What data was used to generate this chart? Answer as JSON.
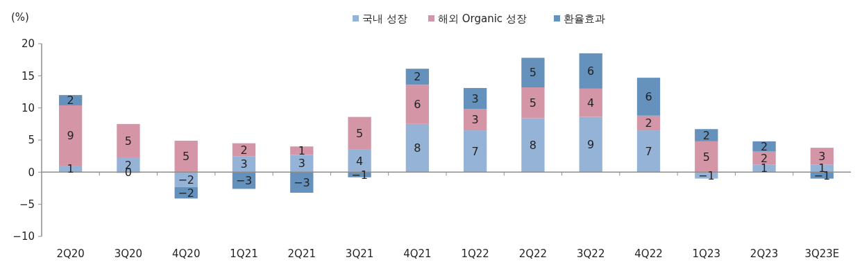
{
  "chart_data": {
    "type": "bar",
    "stacked": true,
    "ylabel": "(%)",
    "categories": [
      "2Q20",
      "3Q20",
      "4Q20",
      "1Q21",
      "2Q21",
      "3Q21",
      "4Q21",
      "1Q22",
      "2Q22",
      "3Q22",
      "4Q22",
      "1Q23",
      "2Q23",
      "3Q23E"
    ],
    "series": [
      {
        "name": "국내 성장",
        "color": "#95b3d7",
        "values": [
          1.0,
          2.2,
          -2.3,
          2.5,
          2.7,
          3.5,
          7.5,
          6.5,
          8.4,
          8.6,
          6.5,
          -1.0,
          1.2,
          1.2
        ],
        "value_labels": [
          "1",
          "2",
          "−2",
          "3",
          "3",
          "4",
          "8",
          "7",
          "8",
          "9",
          "7",
          "−1",
          "1",
          "1"
        ]
      },
      {
        "name": "해외 Organic 성장",
        "color": "#d495a7",
        "values": [
          9.4,
          5.3,
          4.9,
          2.0,
          1.3,
          5.1,
          6.1,
          3.3,
          4.8,
          4.4,
          2.3,
          4.8,
          2.0,
          2.6
        ],
        "value_labels": [
          "9",
          "5",
          "5",
          "2",
          "1",
          "5",
          "6",
          "3",
          "5",
          "4",
          "2",
          "5",
          "2",
          "3"
        ]
      },
      {
        "name": "환율효과",
        "color": "#6591bd",
        "values": [
          1.6,
          -0.1,
          -1.8,
          -2.6,
          -3.2,
          -0.8,
          2.5,
          3.3,
          4.6,
          5.5,
          5.9,
          1.9,
          1.6,
          -1.0
        ],
        "value_labels": [
          "2",
          "0",
          "−2",
          "−3",
          "−3",
          "−1",
          "2",
          "3",
          "5",
          "6",
          "6",
          "2",
          "2",
          "−1"
        ]
      }
    ],
    "ylim": [
      -10,
      20
    ],
    "yticks": [
      {
        "value": -10,
        "label": "−10"
      },
      {
        "value": -5,
        "label": "−5"
      },
      0,
      5,
      10,
      15,
      20
    ],
    "legend": "top"
  }
}
